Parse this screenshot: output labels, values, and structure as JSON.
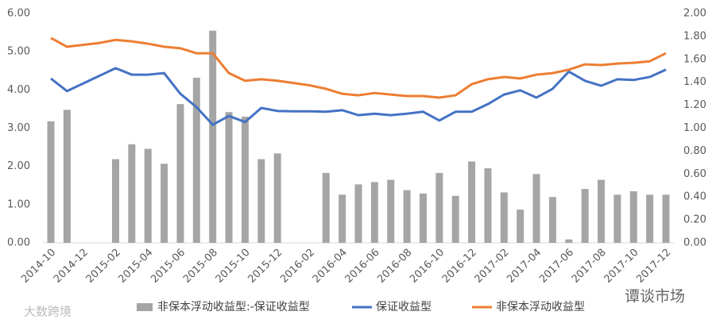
{
  "chart_data": {
    "type": "combo",
    "categories": [
      "2014-10",
      null,
      "2014-12",
      null,
      "2015-02",
      null,
      "2015-04",
      null,
      "2015-06",
      null,
      "2015-08",
      null,
      "2015-10",
      null,
      "2015-12",
      null,
      "2016-02",
      null,
      "2016-04",
      null,
      "2016-06",
      null,
      "2016-08",
      null,
      "2016-10",
      null,
      "2016-12",
      null,
      "2017-02",
      null,
      "2017-04",
      null,
      "2017-06",
      null,
      "2017-08",
      null,
      "2017-10",
      null,
      "2017-12"
    ],
    "series": [
      {
        "name": "非保本浮动收益型:-保证收益型",
        "type": "bar",
        "axis": "y2",
        "color": "#a5a5a5",
        "values": [
          1.06,
          1.16,
          null,
          null,
          0.73,
          0.86,
          0.82,
          0.69,
          1.21,
          1.44,
          1.85,
          1.14,
          1.1,
          0.73,
          0.78,
          null,
          null,
          0.61,
          0.42,
          0.51,
          0.53,
          0.55,
          0.46,
          0.43,
          0.61,
          0.41,
          0.71,
          0.65,
          0.44,
          0.29,
          0.6,
          0.4,
          0.03,
          0.47,
          0.55,
          0.42,
          0.45,
          0.42,
          0.42
        ]
      },
      {
        "name": "保证收益型",
        "type": "line",
        "color": "#4472c4",
        "values": [
          4.3,
          3.97,
          4.17,
          4.37,
          4.57,
          4.4,
          4.4,
          4.44,
          3.9,
          3.55,
          3.09,
          3.32,
          3.16,
          3.53,
          3.45,
          3.44,
          3.44,
          3.43,
          3.47,
          3.34,
          3.38,
          3.34,
          3.38,
          3.43,
          3.2,
          3.43,
          3.43,
          3.63,
          3.88,
          3.99,
          3.8,
          4.03,
          4.48,
          4.24,
          4.11,
          4.28,
          4.26,
          4.34,
          4.53
        ]
      },
      {
        "name": "非保本浮动收益型",
        "type": "line",
        "color": "#ed7d31",
        "values": [
          5.36,
          5.13,
          5.18,
          5.23,
          5.31,
          5.27,
          5.21,
          5.13,
          5.09,
          4.96,
          4.96,
          4.44,
          4.24,
          4.28,
          4.24,
          4.18,
          4.12,
          4.03,
          3.9,
          3.86,
          3.92,
          3.88,
          3.84,
          3.84,
          3.8,
          3.86,
          4.15,
          4.28,
          4.34,
          4.3,
          4.4,
          4.44,
          4.53,
          4.67,
          4.65,
          4.69,
          4.71,
          4.75,
          4.96
        ]
      }
    ],
    "ylim": [
      0,
      6
    ],
    "yticks": [
      {
        "value": 0,
        "label": "0.00"
      },
      {
        "value": 1,
        "label": "1.00"
      },
      {
        "value": 2,
        "label": "2.00"
      },
      {
        "value": 3,
        "label": "3.00"
      },
      {
        "value": 4,
        "label": "4.00"
      },
      {
        "value": 5,
        "label": "5.00"
      },
      {
        "value": 6,
        "label": "6.00"
      }
    ],
    "y2lim": [
      0,
      2
    ],
    "y2ticks": [
      {
        "value": 0,
        "label": "0.00"
      },
      {
        "value": 0.2,
        "label": "0.20"
      },
      {
        "value": 0.4,
        "label": "0.40"
      },
      {
        "value": 0.6,
        "label": "0.60"
      },
      {
        "value": 0.8,
        "label": "0.80"
      },
      {
        "value": 1,
        "label": "1.00"
      },
      {
        "value": 1.2,
        "label": "1.20"
      },
      {
        "value": 1.4,
        "label": "1.40"
      },
      {
        "value": 1.6,
        "label": "1.60"
      },
      {
        "value": 1.8,
        "label": "1.80"
      },
      {
        "value": 2,
        "label": "2.00"
      }
    ],
    "grid": false,
    "legend": "bottom",
    "watermarks": [
      "大数跨境",
      "谭谈市场"
    ]
  }
}
